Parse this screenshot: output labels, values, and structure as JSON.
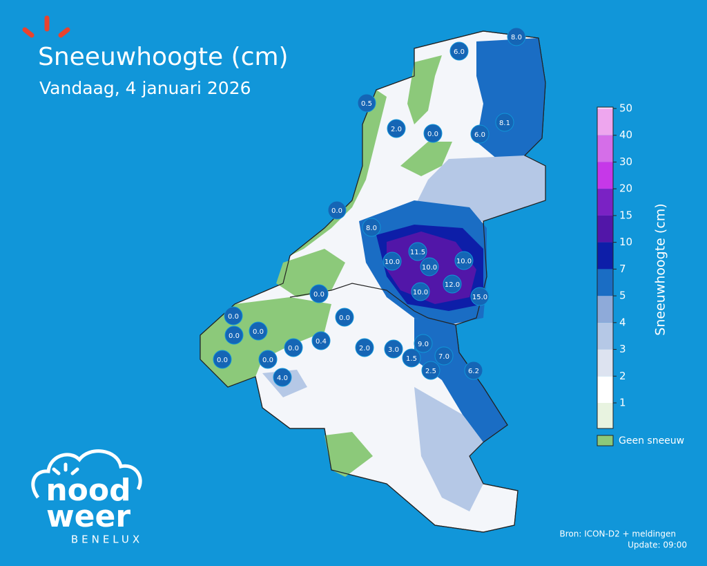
{
  "header": {
    "title": "Sneeuwhoogte (cm)",
    "subtitle": "Vandaag, 4 januari 2026"
  },
  "stations": [
    "8.0",
    "6.0",
    "0.5",
    "2.0",
    "0.0",
    "8.1",
    "6.0",
    "0.0",
    "8.0",
    "11.5",
    "10.0",
    "10.0",
    "10.0",
    "12.0",
    "10.0",
    "15.0",
    "0.0",
    "0.0",
    "0.0",
    "0.0",
    "0.0",
    "0.4",
    "0.0",
    "2.0",
    "3.0",
    "9.0",
    "1.5",
    "7.0",
    "0.0",
    "0.0",
    "2.5",
    "6.2",
    "4.0"
  ],
  "legend": {
    "label": "Sneeuwhoogte (cm)",
    "ticks": [
      "1",
      "2",
      "3",
      "4",
      "5",
      "7",
      "10",
      "15",
      "20",
      "30",
      "40",
      "50"
    ],
    "colors": [
      "#e8f3e0",
      "#ffffff",
      "#dde3f0",
      "#b5c8e6",
      "#8eaad9",
      "#1a6dc4",
      "#0d1ea8",
      "#5216a8",
      "#7a22c4",
      "#c638e8",
      "#d56ee8",
      "#eea6ee"
    ],
    "top_color": "#fce0fa",
    "no_snow": "Geen sneeuw",
    "no_snow_color": "#8cc97a"
  },
  "logo": {
    "line1": "nood",
    "line2": "weer",
    "sub": "BENELUX"
  },
  "footer": {
    "source": "Bron: ICON-D2 + meldingen",
    "update": "Update: 09:00"
  }
}
